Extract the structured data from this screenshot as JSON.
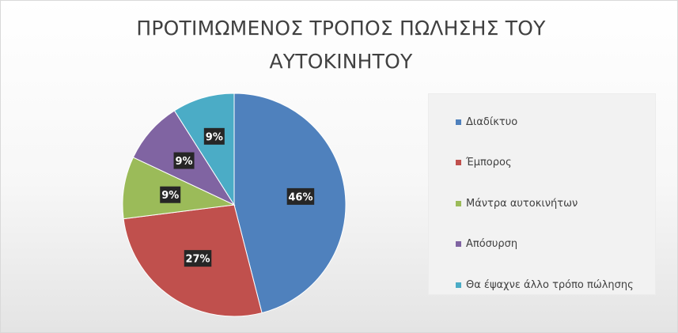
{
  "chart_data": {
    "type": "pie",
    "title": "ΠΡΟΤΙΜΩΜΕΝΟΣ ΤΡΟΠΟΣ ΠΩΛΗΣΗΣ ΤΟΥ ΑΥΤΟΚΙΝΗΤΟΥ",
    "categories": [
      "Διαδίκτυο",
      "Έμπορος",
      "Μάντρα αυτοκινήτων",
      "Απόσυρση",
      "Θα έψαχνε  άλλο τρόπο πώλησης"
    ],
    "values": [
      46,
      27,
      9,
      9,
      9
    ],
    "value_labels": [
      "46%",
      "27%",
      "9%",
      "9%",
      "9%"
    ],
    "colors": [
      "#4f81bd",
      "#c0504d",
      "#9bbb59",
      "#8064a2",
      "#4bacc6"
    ],
    "legend": "right"
  }
}
